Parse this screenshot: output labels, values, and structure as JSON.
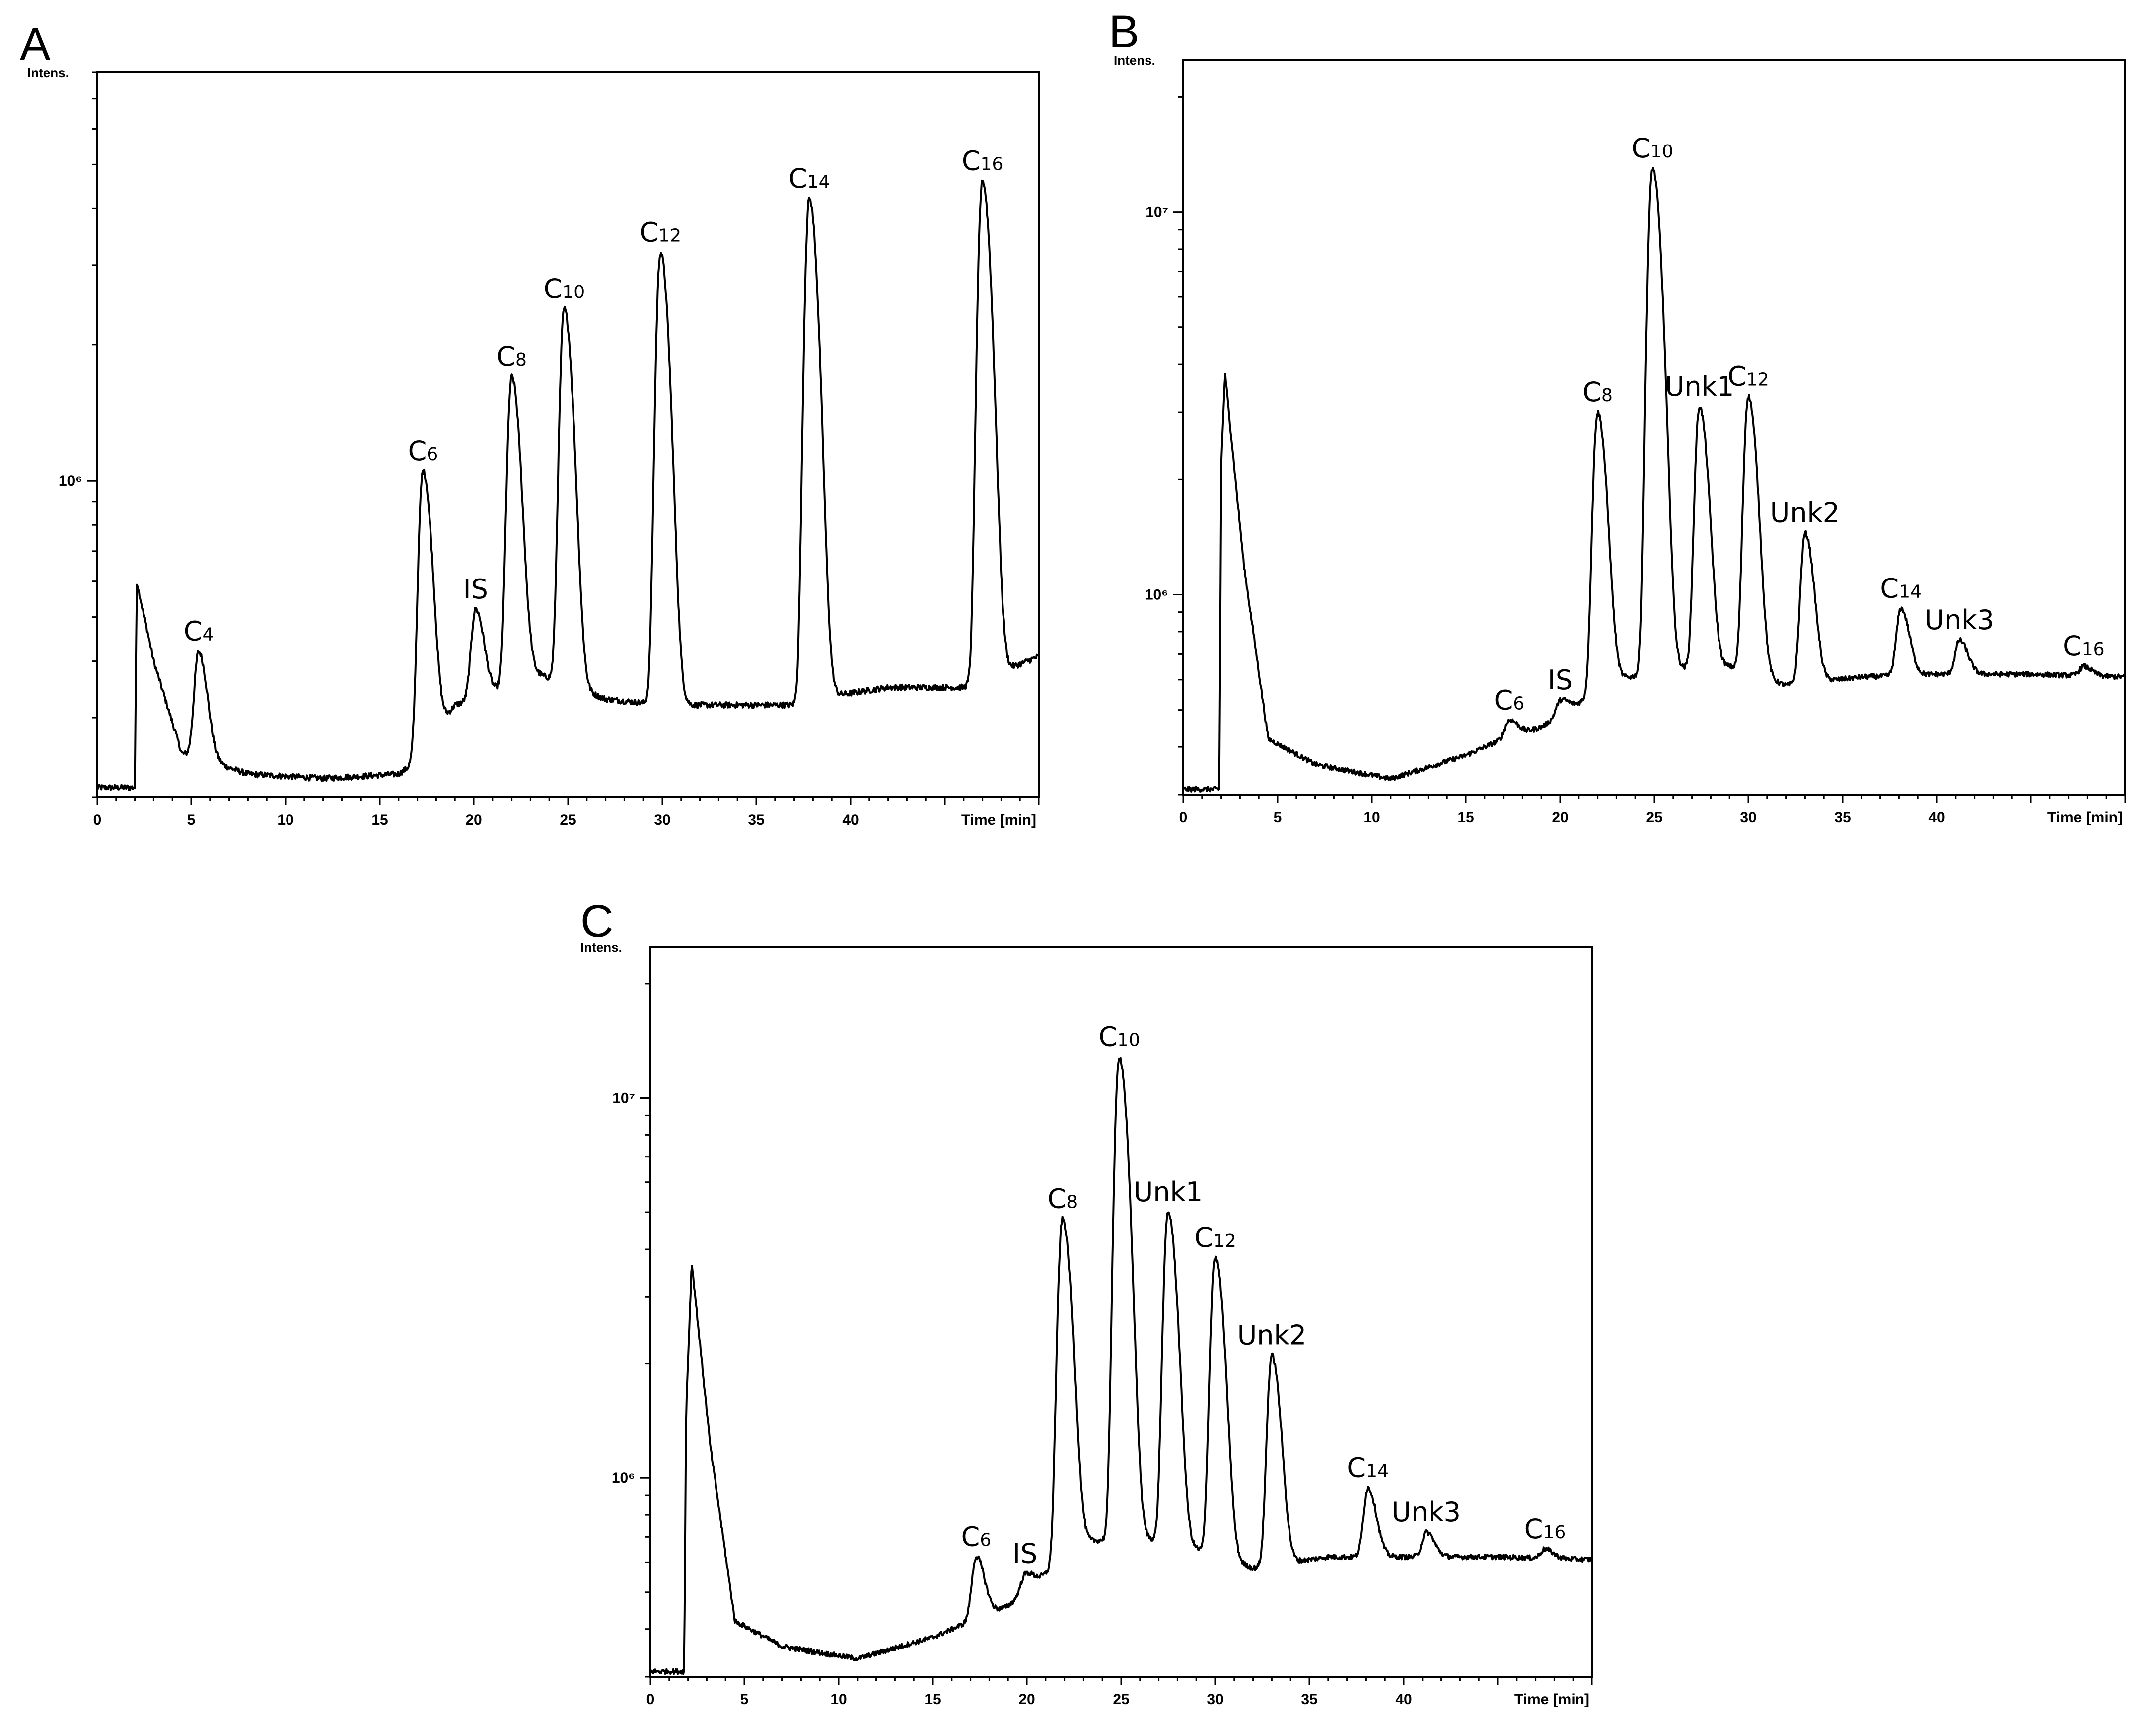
{
  "chart_data": [
    {
      "panel": "A",
      "type": "line",
      "ylabel": "Intens.",
      "xlabel": "Time [min]",
      "x_ticks": [
        0,
        5,
        10,
        15,
        20,
        25,
        30,
        35,
        40
      ],
      "y_tick_labels": [
        {
          "value": 1000000,
          "text": "10⁶"
        }
      ],
      "xlim": [
        0,
        50
      ],
      "ylim": [
        200000,
        8000000
      ],
      "y_scale": "log",
      "baseline": [
        [
          0,
          210000
        ],
        [
          2.0,
          210000
        ],
        [
          2.1,
          600000
        ],
        [
          3,
          400000
        ],
        [
          4.5,
          250000
        ],
        [
          6,
          240000
        ],
        [
          8,
          225000
        ],
        [
          12,
          220000
        ],
        [
          16,
          225000
        ],
        [
          17,
          240000
        ],
        [
          19,
          320000
        ],
        [
          21,
          340000
        ],
        [
          23,
          380000
        ],
        [
          27,
          330000
        ],
        [
          30,
          320000
        ],
        [
          33,
          320000
        ],
        [
          37,
          320000
        ],
        [
          38,
          330000
        ],
        [
          42,
          350000
        ],
        [
          46,
          350000
        ],
        [
          50,
          410000
        ]
      ],
      "peaks": [
        {
          "label": "C4",
          "x": 5.4,
          "y": 420000
        },
        {
          "label": "C6",
          "x": 17.3,
          "y": 1050000
        },
        {
          "label": "IS",
          "x": 20.1,
          "y": 520000
        },
        {
          "label": "C8",
          "x": 22.0,
          "y": 1700000
        },
        {
          "label": "C10",
          "x": 24.8,
          "y": 2400000
        },
        {
          "label": "C12",
          "x": 29.9,
          "y": 3200000
        },
        {
          "label": "C14",
          "x": 37.8,
          "y": 4200000
        },
        {
          "label": "C16",
          "x": 47.0,
          "y": 4600000
        }
      ]
    },
    {
      "panel": "B",
      "type": "line",
      "ylabel": "Intens.",
      "xlabel": "Time [min]",
      "x_ticks": [
        0,
        5,
        10,
        15,
        20,
        25,
        30,
        35,
        40
      ],
      "y_tick_labels": [
        {
          "value": 1000000,
          "text": "10⁶"
        },
        {
          "value": 10000000,
          "text": "10⁷"
        }
      ],
      "xlim": [
        0,
        50
      ],
      "ylim": [
        300000,
        25000000
      ],
      "y_scale": "log",
      "baseline": [
        [
          0,
          310000
        ],
        [
          1.9,
          310000
        ],
        [
          2.0,
          2200000
        ],
        [
          2.2,
          3800000
        ],
        [
          3.2,
          1200000
        ],
        [
          4.5,
          420000
        ],
        [
          7,
          360000
        ],
        [
          11,
          330000
        ],
        [
          15,
          380000
        ],
        [
          17,
          420000
        ],
        [
          19,
          450000
        ],
        [
          21,
          520000
        ],
        [
          23,
          600000
        ],
        [
          26,
          640000
        ],
        [
          29,
          650000
        ],
        [
          32,
          580000
        ],
        [
          36,
          610000
        ],
        [
          40,
          620000
        ],
        [
          45,
          620000
        ],
        [
          50,
          610000
        ]
      ],
      "peaks": [
        {
          "label": "C6",
          "x": 17.3,
          "y": 470000
        },
        {
          "label": "IS",
          "x": 20.0,
          "y": 530000
        },
        {
          "label": "C8",
          "x": 22.0,
          "y": 3000000
        },
        {
          "label": "C10",
          "x": 24.9,
          "y": 13000000
        },
        {
          "label": "Unk1",
          "x": 27.4,
          "y": 3100000
        },
        {
          "label": "C12",
          "x": 30.0,
          "y": 3300000
        },
        {
          "label": "Unk2",
          "x": 33.0,
          "y": 1450000
        },
        {
          "label": "C14",
          "x": 38.1,
          "y": 920000
        },
        {
          "label": "Unk3",
          "x": 41.2,
          "y": 760000
        },
        {
          "label": "C16",
          "x": 47.8,
          "y": 650000
        }
      ]
    },
    {
      "panel": "C",
      "type": "line",
      "ylabel": "Intens.",
      "xlabel": "Time [min]",
      "x_ticks": [
        0,
        5,
        10,
        15,
        20,
        25,
        30,
        35,
        40
      ],
      "y_tick_labels": [
        {
          "value": 1000000,
          "text": "10⁶"
        },
        {
          "value": 10000000,
          "text": "10⁷"
        }
      ],
      "xlim": [
        0,
        50
      ],
      "ylim": [
        300000,
        25000000
      ],
      "y_scale": "log",
      "baseline": [
        [
          0,
          310000
        ],
        [
          1.8,
          310000
        ],
        [
          1.9,
          1500000
        ],
        [
          2.2,
          3700000
        ],
        [
          3.2,
          1200000
        ],
        [
          4.5,
          420000
        ],
        [
          7,
          360000
        ],
        [
          11,
          335000
        ],
        [
          15,
          380000
        ],
        [
          17,
          420000
        ],
        [
          19,
          460000
        ],
        [
          21,
          560000
        ],
        [
          23,
          680000
        ],
        [
          26,
          700000
        ],
        [
          29,
          650000
        ],
        [
          32,
          580000
        ],
        [
          36,
          620000
        ],
        [
          40,
          620000
        ],
        [
          45,
          620000
        ],
        [
          50,
          610000
        ]
      ],
      "peaks": [
        {
          "label": "C6",
          "x": 17.3,
          "y": 620000
        },
        {
          "label": "IS",
          "x": 19.9,
          "y": 560000
        },
        {
          "label": "C8",
          "x": 21.9,
          "y": 4800000
        },
        {
          "label": "C10",
          "x": 24.9,
          "y": 12800000
        },
        {
          "label": "Unk1",
          "x": 27.5,
          "y": 5000000
        },
        {
          "label": "C12",
          "x": 30.0,
          "y": 3800000
        },
        {
          "label": "Unk2",
          "x": 33.0,
          "y": 2100000
        },
        {
          "label": "C14",
          "x": 38.1,
          "y": 940000
        },
        {
          "label": "Unk3",
          "x": 41.2,
          "y": 720000
        },
        {
          "label": "C16",
          "x": 47.5,
          "y": 650000
        }
      ]
    }
  ]
}
